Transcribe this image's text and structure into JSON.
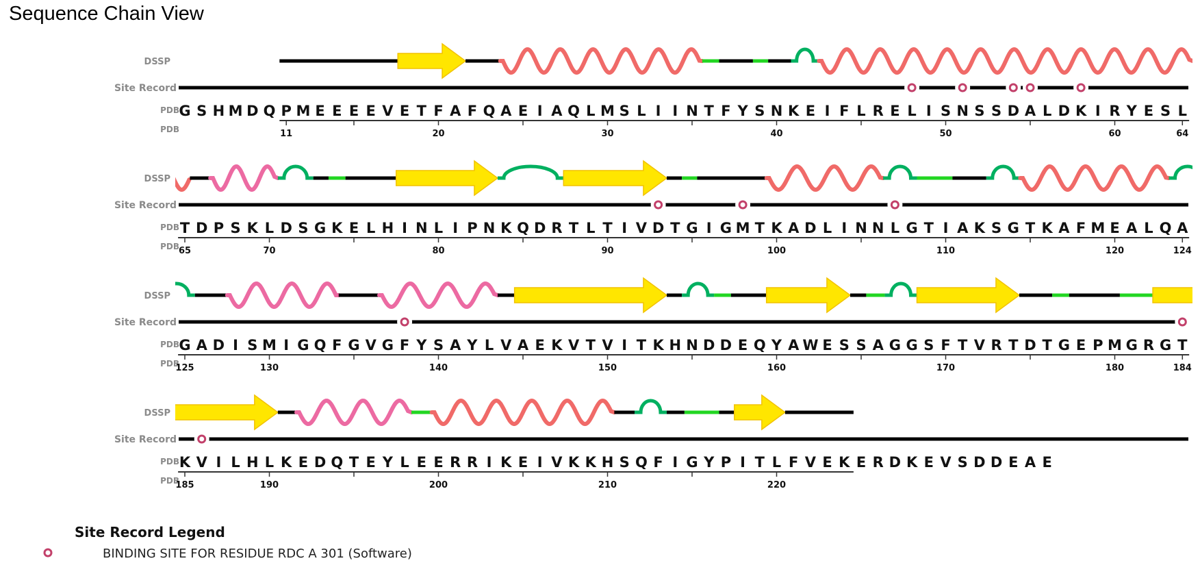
{
  "title": "Sequence Chain View",
  "track_labels": {
    "dssp": "DSSP",
    "site_record": "Site Record",
    "pdb": "PDB"
  },
  "colors": {
    "coil": "#000000",
    "bend": "#22d622",
    "turn": "#00b060",
    "helix_red": "#f06a68",
    "helix_pink": "#ec6aa2",
    "strand_fill": "#ffe600",
    "strand_edge": "#f2c200",
    "site": "#c2406a"
  },
  "rows": [
    {
      "start": 5,
      "sequence": "GSHMDQPMEEEEVETFAFQAEIAQLMSLIINTFYSNKEIFLRELISNSSDALDKIRYESL",
      "ruler": {
        "from": 10.6,
        "to": 64.4,
        "ticks": [
          11,
          15,
          20,
          25,
          30,
          35,
          40,
          45,
          50,
          55,
          60,
          64
        ],
        "labels": [
          "11",
          "20",
          "30",
          "40",
          "50",
          "60",
          "64"
        ]
      },
      "sites": [
        48,
        51,
        54,
        55,
        58
      ],
      "dssp": [
        {
          "type": "coil",
          "from": 10.6,
          "to": 17.6
        },
        {
          "type": "strand",
          "from": 17.6,
          "to": 21.6,
          "arrow": true
        },
        {
          "type": "coil",
          "from": 21.6,
          "to": 23.65
        },
        {
          "type": "helix",
          "color": "red",
          "from": 23.65,
          "to": 35.6
        },
        {
          "type": "bend",
          "from": 35.6,
          "to": 36.6
        },
        {
          "type": "coil",
          "from": 36.6,
          "to": 38.6
        },
        {
          "type": "bend",
          "from": 38.6,
          "to": 39.5
        },
        {
          "type": "coil",
          "from": 39.5,
          "to": 40.85
        },
        {
          "type": "turn",
          "from": 40.85,
          "to": 42.5
        },
        {
          "type": "helix",
          "color": "red",
          "from": 42.5,
          "to": 64.6
        }
      ]
    },
    {
      "start": 65,
      "sequence": "TDPSKLDSGKELHINLIPNKQDRTLTIVDTGIGMTKADLINNLGTIAKSGTKAFMEALQA",
      "ruler": {
        "from": 64.6,
        "to": 124.4,
        "ticks": [
          65,
          70,
          75,
          80,
          85,
          90,
          95,
          100,
          105,
          110,
          115,
          120,
          124
        ],
        "labels": [
          "65",
          "70",
          "80",
          "90",
          "100",
          "110",
          "120",
          "124"
        ]
      },
      "sites": [
        93,
        98,
        107
      ],
      "dssp": [
        {
          "type": "helix",
          "color": "red",
          "from": 63.4,
          "to": 65.3,
          "anchor": "end"
        },
        {
          "type": "coil",
          "from": 65.3,
          "to": 66.5
        },
        {
          "type": "helix",
          "color": "pink",
          "from": 66.5,
          "to": 70.5
        },
        {
          "type": "turn",
          "from": 70.5,
          "to": 72.6
        },
        {
          "type": "coil",
          "from": 72.6,
          "to": 73.5
        },
        {
          "type": "bend",
          "from": 73.5,
          "to": 74.5
        },
        {
          "type": "coil",
          "from": 74.5,
          "to": 77.5
        },
        {
          "type": "strand",
          "from": 77.5,
          "to": 83.5,
          "arrow": true
        },
        {
          "type": "turn",
          "from": 83.5,
          "to": 87.4
        },
        {
          "type": "strand",
          "from": 87.4,
          "to": 93.5,
          "arrow": true
        },
        {
          "type": "coil",
          "from": 93.5,
          "to": 94.4
        },
        {
          "type": "bend",
          "from": 94.4,
          "to": 95.3
        },
        {
          "type": "coil",
          "from": 95.3,
          "to": 99.4
        },
        {
          "type": "helix",
          "color": "red",
          "from": 99.4,
          "to": 106.3
        },
        {
          "type": "turn",
          "from": 106.3,
          "to": 108.3
        },
        {
          "type": "bend",
          "from": 108.3,
          "to": 110.4
        },
        {
          "type": "coil",
          "from": 110.4,
          "to": 112.4
        },
        {
          "type": "turn",
          "from": 112.4,
          "to": 114.4
        },
        {
          "type": "helix",
          "color": "red",
          "from": 114.4,
          "to": 123.2
        },
        {
          "type": "turn",
          "from": 123.2,
          "to": 125.4
        }
      ]
    },
    {
      "start": 125,
      "sequence": "GADISMIGQFGVGFYSAYLVAEKVTVITKHNDDEQYAWESSAGGSFTVRTDTGEPMGRGT",
      "ruler": {
        "from": 124.6,
        "to": 184.4,
        "ticks": [
          125,
          130,
          135,
          140,
          145,
          150,
          155,
          160,
          165,
          170,
          175,
          180,
          184
        ],
        "labels": [
          "125",
          "130",
          "140",
          "150",
          "160",
          "170",
          "180",
          "184"
        ]
      },
      "sites": [
        138,
        184
      ],
      "dssp": [
        {
          "type": "turn",
          "from": 123.4,
          "to": 125.6
        },
        {
          "type": "coil",
          "from": 125.6,
          "to": 127.5
        },
        {
          "type": "helix",
          "color": "pink",
          "from": 127.5,
          "to": 134.1
        },
        {
          "type": "coil",
          "from": 134.1,
          "to": 136.5
        },
        {
          "type": "helix",
          "color": "pink",
          "from": 136.5,
          "to": 143.5
        },
        {
          "type": "coil",
          "from": 143.5,
          "to": 144.5
        },
        {
          "type": "strand",
          "from": 144.5,
          "to": 153.5,
          "arrow": true
        },
        {
          "type": "coil",
          "from": 153.5,
          "to": 154.4
        },
        {
          "type": "turn",
          "from": 154.4,
          "to": 156.3
        },
        {
          "type": "bend",
          "from": 156.3,
          "to": 157.3
        },
        {
          "type": "coil",
          "from": 157.3,
          "to": 159.4
        },
        {
          "type": "strand",
          "from": 159.4,
          "to": 164.35,
          "arrow": true
        },
        {
          "type": "coil",
          "from": 164.35,
          "to": 165.3
        },
        {
          "type": "bend",
          "from": 165.3,
          "to": 166.4
        },
        {
          "type": "turn",
          "from": 166.4,
          "to": 168.3
        },
        {
          "type": "strand",
          "from": 168.3,
          "to": 174.35,
          "arrow": true
        },
        {
          "type": "coil",
          "from": 174.35,
          "to": 176.3
        },
        {
          "type": "bend",
          "from": 176.3,
          "to": 177.3
        },
        {
          "type": "coil",
          "from": 177.3,
          "to": 180.3
        },
        {
          "type": "bend",
          "from": 180.3,
          "to": 182.25
        },
        {
          "type": "strand",
          "from": 182.25,
          "to": 185.5,
          "arrow": false
        }
      ]
    },
    {
      "start": 185,
      "sequence": "KVILHLKEDQTEYLEERRIKEIVKKHSQFIGYPITLFVEKERDKEVSDDEAE",
      "ruler": {
        "from": 184.6,
        "to": 224.55,
        "ticks": [
          185,
          190,
          195,
          200,
          205,
          210,
          215,
          220
        ],
        "labels": [
          "185",
          "190",
          "200",
          "210",
          "220"
        ]
      },
      "sites": [
        186
      ],
      "dssp": [
        {
          "type": "strand",
          "from": 184.4,
          "to": 190.5,
          "arrow": true
        },
        {
          "type": "coil",
          "from": 190.5,
          "to": 191.6
        },
        {
          "type": "helix",
          "color": "pink",
          "from": 191.6,
          "to": 198.4
        },
        {
          "type": "bend",
          "from": 198.4,
          "to": 199.6
        },
        {
          "type": "helix",
          "color": "red",
          "from": 199.6,
          "to": 210.4
        },
        {
          "type": "coil",
          "from": 210.4,
          "to": 211.6
        },
        {
          "type": "turn",
          "from": 211.6,
          "to": 213.5
        },
        {
          "type": "coil",
          "from": 213.5,
          "to": 214.55
        },
        {
          "type": "bend",
          "from": 214.55,
          "to": 216.6
        },
        {
          "type": "coil",
          "from": 216.6,
          "to": 217.5
        },
        {
          "type": "strand",
          "from": 217.5,
          "to": 220.5,
          "arrow": true
        },
        {
          "type": "coil",
          "from": 220.5,
          "to": 224.55
        }
      ]
    }
  ],
  "legend": {
    "title": "Site Record Legend",
    "items": [
      {
        "label": "BINDING SITE FOR RESIDUE RDC A 301 (Software)"
      }
    ]
  }
}
